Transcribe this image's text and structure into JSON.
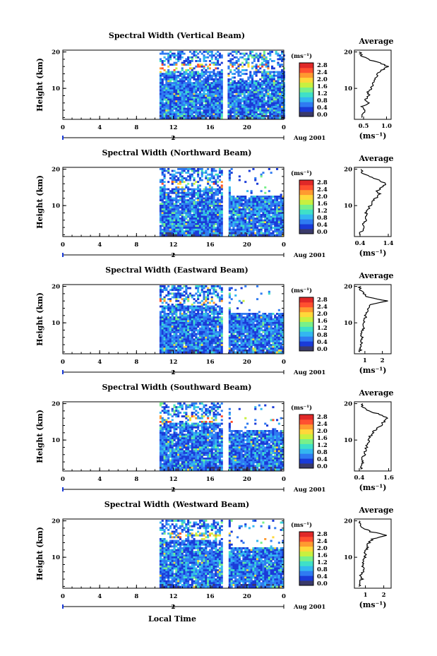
{
  "figure": {
    "xlabel": "Local Time",
    "date_label": "Aug 2001",
    "ylabel": "Height (km)",
    "colorbar_unit": "(ms⁻¹)",
    "avg_xlabel": "(ms⁻¹)",
    "colorbar_ticks": [
      "0.0",
      "0.4",
      "0.8",
      "1.2",
      "1.6",
      "2.0",
      "2.4",
      "2.8"
    ],
    "colors": [
      "#3a3a6a",
      "#1a3bd8",
      "#2f7bf2",
      "#33b7f0",
      "#3fe0c8",
      "#78f08a",
      "#c8f040",
      "#ffd83a",
      "#ff9a30",
      "#ff5030",
      "#e02828"
    ]
  },
  "chart_data": [
    {
      "type": "heatmap",
      "title": "Spectral Width (Vertical Beam)",
      "x_ticks": [
        "0",
        "4",
        "8",
        "12",
        "16",
        "20",
        "0"
      ],
      "day_label": "2",
      "y_ticks": [
        "20",
        "10"
      ],
      "xlim": [
        0,
        24
      ],
      "ylim": [
        1.5,
        20.5
      ],
      "data_intervals": [
        [
          10.5,
          17.3
        ],
        [
          17.9,
          24
        ]
      ],
      "cbar_range": [
        0,
        2.8
      ],
      "avg": {
        "title": "Average",
        "x_ticks": [
          "0.5",
          "1.0"
        ],
        "x_tick_values": [
          0.5,
          1.0
        ],
        "y_ticks": [
          "20",
          "10"
        ],
        "xlim": [
          0.3,
          1.1
        ],
        "heights": [
          2,
          3,
          4,
          5,
          6,
          7,
          8,
          9,
          10,
          11,
          12,
          13,
          14,
          15,
          16,
          17,
          18,
          19,
          20
        ],
        "values": [
          0.45,
          0.5,
          0.55,
          0.48,
          0.6,
          0.55,
          0.62,
          0.6,
          0.66,
          0.7,
          0.72,
          0.76,
          0.82,
          0.9,
          1.02,
          0.85,
          0.6,
          0.45,
          0.42
        ]
      }
    },
    {
      "type": "heatmap",
      "title": "Spectral Width (Northward Beam)",
      "x_ticks": [
        "0",
        "4",
        "8",
        "12",
        "16",
        "20",
        "0"
      ],
      "day_label": "2",
      "y_ticks": [
        "20",
        "10"
      ],
      "xlim": [
        0,
        24
      ],
      "ylim": [
        1.5,
        20.5
      ],
      "data_intervals": [
        [
          10.5,
          17.3
        ],
        [
          18.0,
          24
        ]
      ],
      "cbar_range": [
        0,
        2.8
      ],
      "avg": {
        "title": "Average",
        "x_ticks": [
          "0.4",
          "1.4"
        ],
        "x_tick_values": [
          0.4,
          1.4
        ],
        "y_ticks": [
          "20",
          "10"
        ],
        "xlim": [
          0.2,
          1.5
        ],
        "heights": [
          2,
          3,
          4,
          5,
          6,
          7,
          8,
          9,
          10,
          11,
          12,
          13,
          14,
          15,
          16,
          17,
          18,
          19,
          20
        ],
        "values": [
          0.4,
          0.45,
          0.55,
          0.5,
          0.6,
          0.58,
          0.62,
          0.7,
          0.75,
          0.85,
          0.95,
          1.1,
          1.0,
          1.15,
          1.35,
          1.05,
          0.7,
          0.5,
          0.45
        ]
      }
    },
    {
      "type": "heatmap",
      "title": "Spectral Width (Eastward Beam)",
      "x_ticks": [
        "0",
        "4",
        "8",
        "12",
        "16",
        "20",
        "0"
      ],
      "day_label": "2",
      "y_ticks": [
        "20",
        "10"
      ],
      "xlim": [
        0,
        24
      ],
      "ylim": [
        1.5,
        20.5
      ],
      "data_intervals": [
        [
          10.5,
          17.3
        ],
        [
          18.0,
          24
        ]
      ],
      "cbar_range": [
        0,
        2.8
      ],
      "avg": {
        "title": "Average",
        "x_ticks": [
          "1",
          "2"
        ],
        "x_tick_values": [
          1,
          2
        ],
        "y_ticks": [
          "20",
          "10"
        ],
        "xlim": [
          0.4,
          2.5
        ],
        "heights": [
          2,
          3,
          4,
          5,
          6,
          7,
          8,
          9,
          10,
          11,
          12,
          13,
          14,
          15,
          16,
          17,
          18,
          19,
          20
        ],
        "values": [
          0.7,
          0.75,
          0.8,
          0.78,
          0.85,
          0.82,
          0.88,
          0.9,
          0.95,
          1.0,
          1.05,
          1.1,
          1.2,
          1.35,
          2.3,
          1.2,
          0.9,
          0.75,
          0.7
        ]
      }
    },
    {
      "type": "heatmap",
      "title": "Spectral Width (Southward Beam)",
      "x_ticks": [
        "0",
        "4",
        "8",
        "12",
        "16",
        "20",
        "0"
      ],
      "day_label": "2",
      "y_ticks": [
        "20",
        "10"
      ],
      "xlim": [
        0,
        24
      ],
      "ylim": [
        1.5,
        20.5
      ],
      "data_intervals": [
        [
          10.5,
          17.3
        ],
        [
          18.0,
          24
        ]
      ],
      "cbar_range": [
        0,
        2.8
      ],
      "avg": {
        "title": "Average",
        "x_ticks": [
          "0.4",
          "1.6"
        ],
        "x_tick_values": [
          0.4,
          1.6
        ],
        "y_ticks": [
          "20",
          "10"
        ],
        "xlim": [
          0.2,
          1.7
        ],
        "heights": [
          2,
          3,
          4,
          5,
          6,
          7,
          8,
          9,
          10,
          11,
          12,
          13,
          14,
          15,
          16,
          17,
          18,
          19,
          20
        ],
        "values": [
          0.45,
          0.5,
          0.55,
          0.52,
          0.6,
          0.65,
          0.7,
          0.75,
          0.8,
          0.85,
          0.95,
          1.1,
          1.3,
          1.4,
          1.55,
          1.25,
          0.8,
          0.55,
          0.5
        ]
      }
    },
    {
      "type": "heatmap",
      "title": "Spectral Width (Westward Beam)",
      "x_ticks": [
        "0",
        "4",
        "8",
        "12",
        "16",
        "20",
        "0"
      ],
      "day_label": "2",
      "y_ticks": [
        "20",
        "10"
      ],
      "xlim": [
        0,
        24
      ],
      "ylim": [
        1.5,
        20.5
      ],
      "data_intervals": [
        [
          10.5,
          17.3
        ],
        [
          18.0,
          24
        ]
      ],
      "cbar_range": [
        0,
        2.8
      ],
      "avg": {
        "title": "Average",
        "x_ticks": [
          "1",
          "2"
        ],
        "x_tick_values": [
          1,
          2
        ],
        "y_ticks": [
          "20",
          "10"
        ],
        "xlim": [
          0.4,
          2.4
        ],
        "heights": [
          2,
          3,
          4,
          5,
          6,
          7,
          8,
          9,
          10,
          11,
          12,
          13,
          14,
          15,
          16,
          17,
          18,
          19,
          20
        ],
        "values": [
          0.7,
          0.72,
          0.8,
          0.75,
          0.85,
          0.9,
          0.82,
          0.88,
          0.95,
          1.0,
          1.05,
          1.1,
          1.2,
          1.4,
          2.2,
          1.3,
          0.9,
          0.75,
          0.7
        ]
      }
    }
  ]
}
